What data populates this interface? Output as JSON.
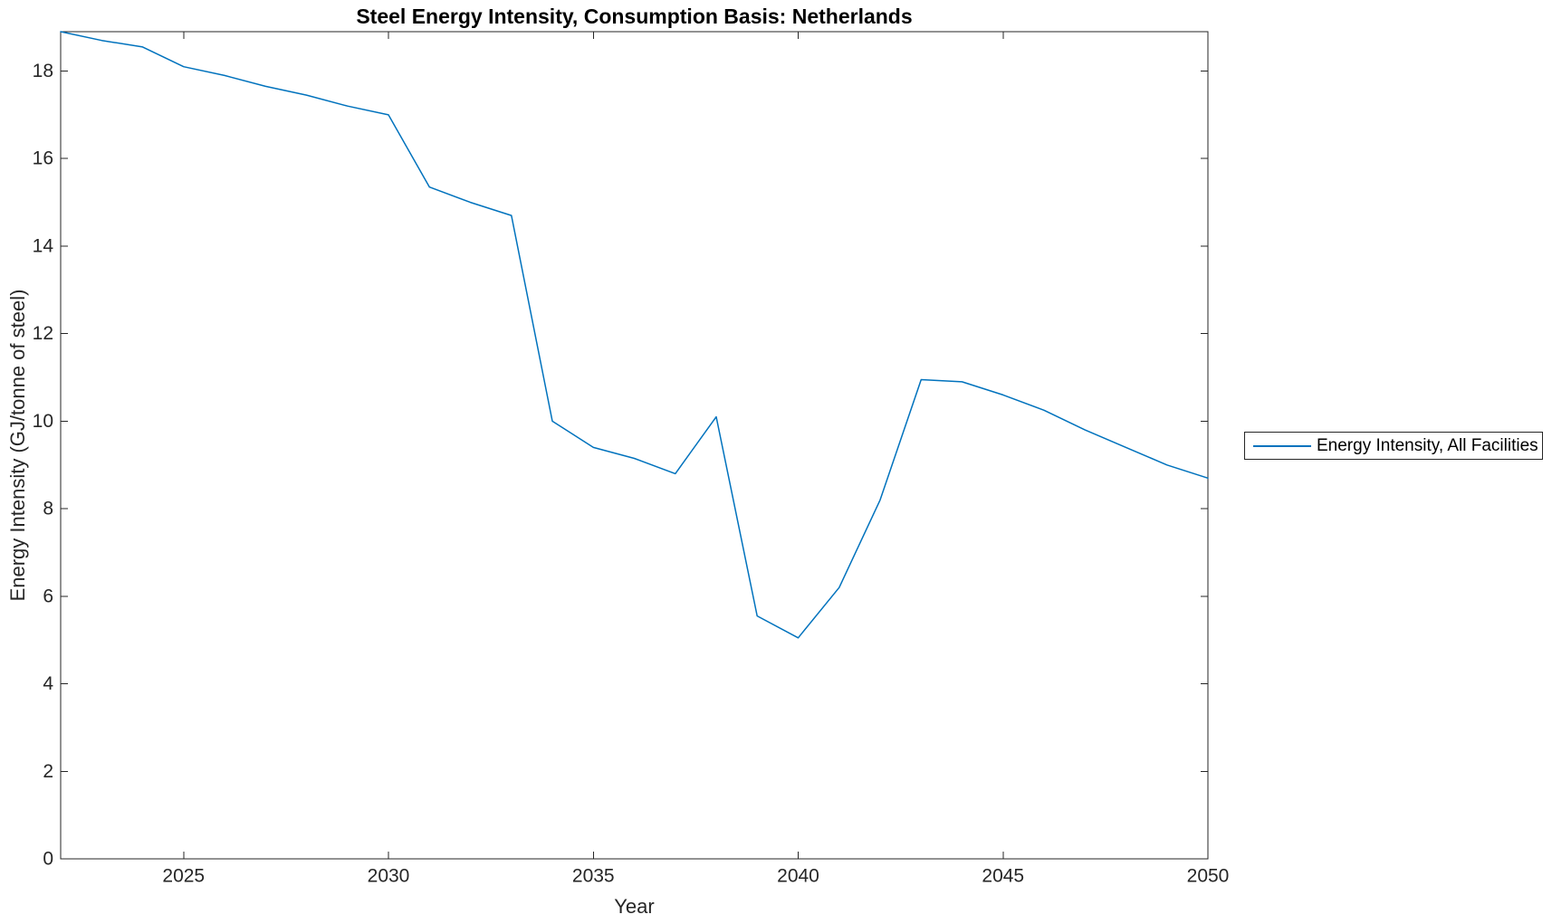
{
  "chart_data": {
    "type": "line",
    "title": "Steel Energy Intensity, Consumption Basis: Netherlands",
    "xlabel": "Year",
    "ylabel": "Energy Intensity (GJ/tonne of steel)",
    "xlim": [
      2022,
      2050
    ],
    "ylim": [
      0,
      18.9
    ],
    "x_ticks": [
      2025,
      2030,
      2035,
      2040,
      2045,
      2050
    ],
    "y_ticks": [
      0,
      2,
      4,
      6,
      8,
      10,
      12,
      14,
      16,
      18
    ],
    "grid": false,
    "box": true,
    "tick_direction": "in",
    "legend_position": "right-outside-middle",
    "series": [
      {
        "name": "Energy Intensity, All Facilities",
        "color": "#0072BD",
        "line_width": 1.5,
        "x": [
          2022,
          2023,
          2024,
          2025,
          2026,
          2027,
          2028,
          2029,
          2030,
          2031,
          2032,
          2033,
          2034,
          2035,
          2036,
          2037,
          2038,
          2039,
          2040,
          2041,
          2042,
          2043,
          2044,
          2045,
          2046,
          2047,
          2048,
          2049,
          2050
        ],
        "values": [
          18.9,
          18.7,
          18.55,
          18.1,
          17.9,
          17.65,
          17.45,
          17.2,
          17.0,
          15.35,
          15.0,
          14.7,
          10.0,
          9.4,
          9.15,
          8.8,
          10.1,
          5.55,
          5.05,
          6.2,
          8.2,
          10.95,
          10.9,
          10.6,
          10.25,
          9.8,
          9.4,
          9.0,
          8.7
        ]
      }
    ]
  },
  "legend": {
    "entries": [
      {
        "label": "Energy Intensity, All Facilities",
        "color": "#0072BD"
      }
    ]
  },
  "colors": {
    "background": "#ffffff",
    "axis": "#262626",
    "tick_label": "#262626",
    "title": "#000000",
    "series_blue": "#0072BD"
  }
}
